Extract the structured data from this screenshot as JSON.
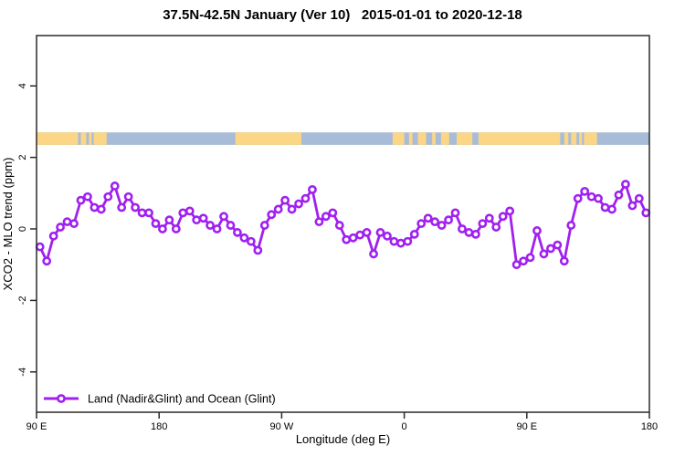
{
  "title": "37.5N-42.5N January (Ver 10)   2015-01-01 to 2020-12-18",
  "colors": {
    "series": "#A020F0",
    "marker_fill": "#ffffff",
    "land": "#FBD687",
    "ocean": "#A8BCD8",
    "axis": "#2a2a2a",
    "text": "#000000"
  },
  "legend": {
    "label": "Land (Nadir&Glint) and Ocean (Glint)"
  },
  "chart_data": {
    "type": "line",
    "title": "37.5N-42.5N January (Ver 10)   2015-01-01 to 2020-12-18",
    "xlabel": "Longitude (deg E)",
    "ylabel": "XCO2 - MLO trend (ppm)",
    "xlim": [
      90,
      540
    ],
    "ylim": [
      -5.1,
      5.4
    ],
    "x_axis_note": "longitude axis wraps: 90E to 180, 90W, 0, 90E, 180",
    "xticks": [
      {
        "lon": 90,
        "label": "90 E"
      },
      {
        "lon": 180,
        "label": "180"
      },
      {
        "lon": 270,
        "label": "90 W"
      },
      {
        "lon": 360,
        "label": "0"
      },
      {
        "lon": 450,
        "label": "90 E"
      },
      {
        "lon": 540,
        "label": "180"
      }
    ],
    "yticks": [
      {
        "value": 4,
        "label": "4"
      },
      {
        "value": 2,
        "label": "2"
      },
      {
        "value": 0,
        "label": "0"
      },
      {
        "value": -2,
        "label": "-2"
      },
      {
        "value": -4,
        "label": "-4"
      }
    ],
    "grid": false,
    "legend_position": "bottom-left-inside",
    "series": [
      {
        "name": "Land (Nadir&Glint) and Ocean (Glint)",
        "x": [
          92.5,
          97.5,
          102.5,
          107.5,
          112.5,
          117.5,
          122.5,
          127.5,
          132.5,
          137.5,
          142.5,
          147.5,
          152.5,
          157.5,
          162.5,
          167.5,
          172.5,
          177.5,
          182.5,
          187.5,
          192.5,
          197.5,
          202.5,
          207.5,
          212.5,
          217.5,
          222.5,
          227.5,
          232.5,
          237.5,
          242.5,
          247.5,
          252.5,
          257.5,
          262.5,
          267.5,
          272.5,
          277.5,
          282.5,
          287.5,
          292.5,
          297.5,
          302.5,
          307.5,
          312.5,
          317.5,
          322.5,
          327.5,
          332.5,
          337.5,
          342.5,
          347.5,
          352.5,
          357.5,
          362.5,
          367.5,
          372.5,
          377.5,
          382.5,
          387.5,
          392.5,
          397.5,
          402.5,
          407.5,
          412.5,
          417.5,
          422.5,
          427.5,
          432.5,
          437.5,
          442.5,
          447.5,
          452.5,
          457.5,
          462.5,
          467.5,
          472.5,
          477.5,
          482.5,
          487.5,
          492.5,
          497.5,
          502.5,
          507.5,
          512.5,
          517.5,
          522.5,
          527.5,
          532.5,
          537.5
        ],
        "values": [
          -0.5,
          -0.9,
          -0.2,
          0.05,
          0.2,
          0.15,
          0.8,
          0.9,
          0.6,
          0.55,
          0.9,
          1.2,
          0.6,
          0.9,
          0.6,
          0.45,
          0.45,
          0.15,
          0.0,
          0.25,
          0.0,
          0.45,
          0.5,
          0.25,
          0.3,
          0.1,
          0.0,
          0.35,
          0.1,
          -0.1,
          -0.25,
          -0.35,
          -0.6,
          0.1,
          0.4,
          0.55,
          0.8,
          0.55,
          0.7,
          0.85,
          1.1,
          0.2,
          0.35,
          0.45,
          0.1,
          -0.3,
          -0.25,
          -0.17,
          -0.1,
          -0.7,
          -0.1,
          -0.2,
          -0.35,
          -0.4,
          -0.35,
          -0.15,
          0.15,
          0.3,
          0.2,
          0.1,
          0.25,
          0.45,
          0.0,
          -0.1,
          -0.15,
          0.15,
          0.3,
          0.05,
          0.35,
          0.5,
          -1.0,
          -0.9,
          -0.8,
          -0.05,
          -0.7,
          -0.55,
          -0.45,
          -0.9,
          0.1,
          0.85,
          1.05,
          0.9,
          0.85,
          0.6,
          0.55,
          0.95,
          1.25,
          0.65,
          0.85,
          0.45
        ]
      }
    ],
    "land_ocean_strip": {
      "description": "horizontal land/ocean mask band",
      "value_band": [
        2.35,
        2.7
      ],
      "land_segments_lon": [
        [
          90,
          120.5
        ],
        [
          122.5,
          126.5
        ],
        [
          128.5,
          130.5
        ],
        [
          132,
          141.5
        ],
        [
          236,
          284.5
        ],
        [
          351.5,
          360
        ],
        [
          363.5,
          366
        ],
        [
          370,
          376
        ],
        [
          380.5,
          383
        ],
        [
          387,
          393
        ],
        [
          398.5,
          410
        ],
        [
          414.5,
          474.5
        ],
        [
          477.5,
          480.5
        ],
        [
          482.5,
          486.5
        ],
        [
          488.5,
          490.5
        ],
        [
          492,
          501.5
        ]
      ]
    }
  }
}
